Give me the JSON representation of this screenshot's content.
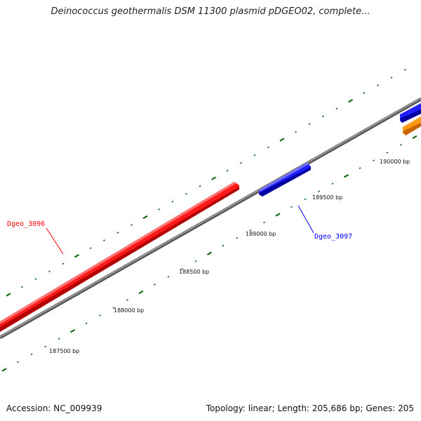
{
  "header": {
    "title": "Deinococcus geothermalis DSM 11300 plasmid pDGEO02, complete..."
  },
  "footer": {
    "accession": "Accession: NC_009939",
    "summary": "Topology: linear; Length: 205,686 bp; Genes: 205"
  },
  "map": {
    "tick_labels": [
      "187500 bp",
      "188000 bp",
      "188500 bp",
      "189000 bp",
      "189500 bp",
      "190000 bp"
    ]
  },
  "genes": [
    {
      "name": "Dgeo_3096",
      "color": "#ff0000"
    },
    {
      "name": "Dgeo_3097",
      "color": "#0000ff"
    },
    {
      "name": "",
      "color": "#0000ff"
    },
    {
      "name": "",
      "color": "#ff8c00"
    }
  ],
  "colors": {
    "backbone": "#808080",
    "ticks": "#006400",
    "forward_gene": "#ff0000",
    "reverse_gene": "#0000ff",
    "other_gene": "#ff8c00"
  }
}
